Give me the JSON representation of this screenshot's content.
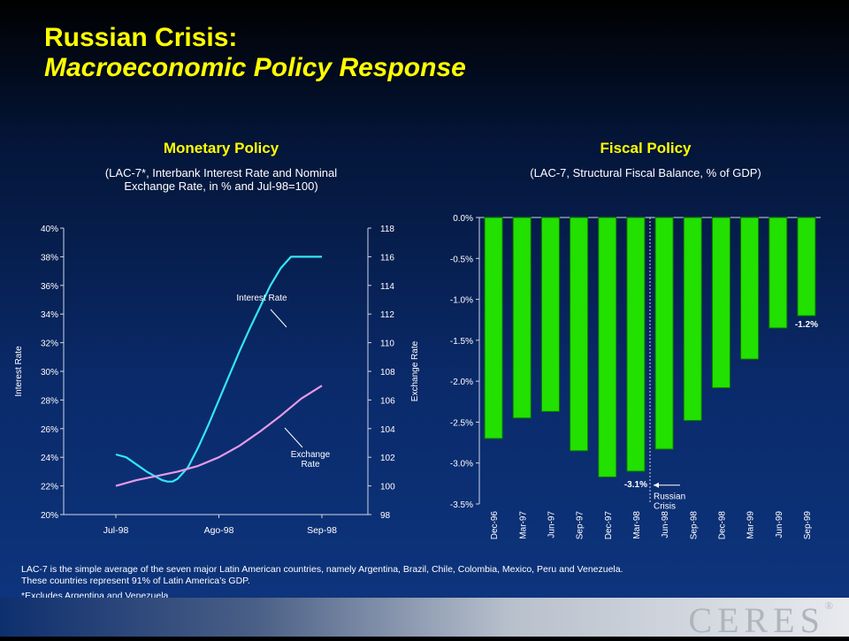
{
  "title": {
    "line1": "Russian Crisis:",
    "line2": "Macroeconomic Policy Response"
  },
  "monetary": {
    "heading": "Monetary Policy",
    "subtitle_line1": "(LAC-7*, Interbank Interest Rate and Nominal",
    "subtitle_line2": "Exchange Rate, in % and Jul-98=100)"
  },
  "fiscal": {
    "heading": "Fiscal Policy",
    "subtitle": "(LAC-7, Structural Fiscal Balance, % of GDP)"
  },
  "footer": {
    "line1": "LAC-7 is the simple average of the seven major Latin American countries, namely Argentina, Brazil, Chile, Colombia, Mexico, Peru and Venezuela.",
    "line2": "These countries represent 91% of Latin America’s GDP.",
    "note": "*Excludes Argentina and Venezuela"
  },
  "logo": {
    "text": "CERES",
    "mark": "®"
  },
  "colors": {
    "title": "#ffff00",
    "interest": "#33e6f5",
    "exchange": "#e79ae9",
    "bar": "#22e000",
    "bar_dark": "#0a7a00"
  },
  "chart_data": [
    {
      "type": "line",
      "x_ticks": [
        "Jul-98",
        "Ago-98",
        "Sep-98"
      ],
      "ylabel": "Interest Rate",
      "y2label": "Exchange Rate",
      "ylim": [
        20,
        40
      ],
      "y_ticks": [
        "20%",
        "22%",
        "24%",
        "26%",
        "28%",
        "30%",
        "32%",
        "34%",
        "36%",
        "38%",
        "40%"
      ],
      "y2lim": [
        98,
        118
      ],
      "y2_ticks": [
        "98",
        "100",
        "102",
        "104",
        "106",
        "108",
        "110",
        "112",
        "114",
        "116",
        "118"
      ],
      "grid": false,
      "series": [
        {
          "name": "Interest Rate",
          "axis": "left",
          "x": [
            0,
            0.1,
            0.2,
            0.3,
            0.4,
            0.45,
            0.5,
            0.55,
            0.6,
            0.7,
            0.8,
            0.9,
            1.0,
            1.1,
            1.2,
            1.3,
            1.4,
            1.5,
            1.6,
            1.7,
            1.8,
            1.9,
            2.0
          ],
          "values": [
            24.2,
            24.0,
            23.5,
            23.0,
            22.6,
            22.4,
            22.3,
            22.3,
            22.5,
            23.3,
            24.7,
            26.3,
            28.0,
            29.7,
            31.4,
            33.0,
            34.5,
            36.0,
            37.2,
            38.0,
            38.0,
            38.0,
            38.0
          ]
        },
        {
          "name": "Exchange Rate",
          "axis": "right",
          "x": [
            0,
            0.2,
            0.4,
            0.6,
            0.8,
            1.0,
            1.2,
            1.4,
            1.6,
            1.8,
            2.0
          ],
          "values": [
            100.0,
            100.4,
            100.7,
            101.0,
            101.4,
            102.0,
            102.8,
            103.8,
            104.9,
            106.1,
            107.0
          ]
        }
      ],
      "annotations": [
        {
          "text": "Interest Rate"
        },
        {
          "text_line1": "Exchange",
          "text_line2": "Rate"
        }
      ]
    },
    {
      "type": "bar",
      "categories": [
        "Dec-96",
        "Mar-97",
        "Jun-97",
        "Sep-97",
        "Dec-97",
        "Mar-98",
        "Jun-98",
        "Sep-98",
        "Dec-98",
        "Mar-99",
        "Jun-99",
        "Sep-99"
      ],
      "values": [
        -2.7,
        -2.45,
        -2.37,
        -2.85,
        -3.17,
        -3.1,
        -2.83,
        -2.48,
        -2.08,
        -1.73,
        -1.35,
        -1.2
      ],
      "ylim": [
        -3.5,
        0
      ],
      "y_ticks": [
        "0.0%",
        "-0.5%",
        "-1.0%",
        "-1.5%",
        "-2.0%",
        "-2.5%",
        "-3.0%",
        "-3.5%"
      ],
      "data_labels": [
        {
          "index": 5,
          "text": "-3.1%"
        },
        {
          "index": 11,
          "text": "-1.2%"
        }
      ],
      "annotation": {
        "text_line1": "Russian",
        "text_line2": "Crisis"
      },
      "grid": false
    }
  ]
}
